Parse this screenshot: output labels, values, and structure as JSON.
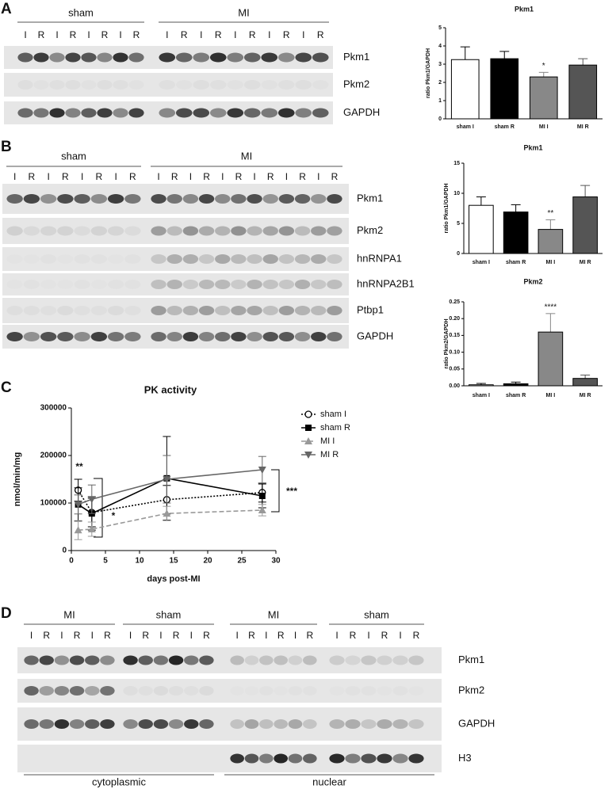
{
  "panel_labels": [
    "A",
    "B",
    "C",
    "D"
  ],
  "blots": [
    {
      "groups": [
        {
          "label": "sham",
          "lanes": [
            "I",
            "R",
            "I",
            "R",
            "I",
            "R",
            "I",
            "R"
          ]
        },
        {
          "label": "MI",
          "lanes": [
            "I",
            "R",
            "I",
            "R",
            "I",
            "R",
            "I",
            "R",
            "I",
            "R"
          ]
        }
      ],
      "rows": [
        "Pkm1",
        "Pkm2",
        "GAPDH"
      ]
    },
    {
      "groups": [
        {
          "label": "sham",
          "lanes": [
            "I",
            "R",
            "I",
            "R",
            "I",
            "R",
            "I",
            "R"
          ]
        },
        {
          "label": "MI",
          "lanes": [
            "I",
            "R",
            "I",
            "R",
            "I",
            "R",
            "I",
            "R",
            "I",
            "R",
            "I",
            "R"
          ]
        }
      ],
      "rows": [
        "Pkm1",
        "Pkm2",
        "hnRNPA1",
        "hnRNPA2B1",
        "Ptbp1",
        "GAPDH"
      ]
    },
    {
      "groups": [
        {
          "label": "MI",
          "lanes": [
            "I",
            "R",
            "I",
            "R",
            "I",
            "R"
          ]
        },
        {
          "label": "sham",
          "lanes": [
            "I",
            "R",
            "I",
            "R",
            "I",
            "R"
          ]
        },
        {
          "label": "MI",
          "lanes": [
            "I",
            "R",
            "I",
            "R",
            "I",
            "R"
          ]
        },
        {
          "label": "sham",
          "lanes": [
            "I",
            "R",
            "I",
            "R",
            "I",
            "R"
          ]
        }
      ],
      "rows": [
        "Pkm1",
        "Pkm2",
        "GAPDH",
        "H3"
      ],
      "fractions": [
        "cytoplasmic",
        "nuclear"
      ]
    }
  ],
  "chart_data": [
    {
      "type": "bar",
      "title": "Pkm1",
      "ylabel": "ratio Pkm1/GAPDH",
      "categories": [
        "sham I",
        "sham R",
        "MI I",
        "MI R"
      ],
      "values": [
        3.25,
        3.3,
        2.3,
        2.95
      ],
      "errors": [
        0.7,
        0.4,
        0.25,
        0.35
      ],
      "colors": [
        "#ffffff",
        "#000000",
        "#888888",
        "#555555"
      ],
      "significance": [
        null,
        null,
        "*",
        null
      ],
      "ylim": [
        0,
        5
      ],
      "yticks": [
        0,
        1,
        2,
        3,
        4,
        5
      ]
    },
    {
      "type": "bar",
      "title": "Pkm1",
      "ylabel": "ratio Pkm1/GAPDH",
      "categories": [
        "sham I",
        "sham R",
        "MI I",
        "MI R"
      ],
      "values": [
        8,
        6.9,
        4,
        9.4
      ],
      "errors": [
        1.4,
        1.2,
        1.6,
        1.9
      ],
      "colors": [
        "#ffffff",
        "#000000",
        "#888888",
        "#555555"
      ],
      "significance": [
        null,
        null,
        "**",
        null
      ],
      "ylim": [
        0,
        15
      ],
      "yticks": [
        0,
        5,
        10,
        15
      ]
    },
    {
      "type": "bar",
      "title": "Pkm2",
      "ylabel": "ratio Pkm2/GAPDH",
      "categories": [
        "sham I",
        "sham R",
        "MI I",
        "MI R"
      ],
      "values": [
        0.003,
        0.006,
        0.16,
        0.022
      ],
      "errors": [
        0.004,
        0.005,
        0.055,
        0.01
      ],
      "colors": [
        "#ffffff",
        "#000000",
        "#888888",
        "#555555"
      ],
      "significance": [
        null,
        null,
        "****",
        null
      ],
      "ylim": [
        0,
        0.25
      ],
      "yticks": [
        {
          "value": 0,
          "label": "0.00"
        },
        {
          "value": 0.05,
          "label": "0.05"
        },
        {
          "value": 0.1,
          "label": "0.10"
        },
        {
          "value": 0.15,
          "label": "0.15"
        },
        {
          "value": 0.2,
          "label": "0.20"
        },
        {
          "value": 0.25,
          "label": "0.25"
        }
      ]
    },
    {
      "type": "line",
      "title": "PK activity",
      "xlabel": "days post-MI",
      "ylabel": "nmol/min/mg",
      "x": [
        1,
        3,
        14,
        28
      ],
      "series": [
        {
          "name": "sham I",
          "color": "#000000",
          "dash": "dotted",
          "marker": "circle-open",
          "values": [
            127000,
            80000,
            107000,
            122000
          ],
          "errors": [
            23000,
            30000,
            30000,
            20000
          ]
        },
        {
          "name": "sham R",
          "color": "#000000",
          "dash": "solid",
          "marker": "square",
          "values": [
            97000,
            78000,
            152000,
            115000
          ],
          "errors": [
            35000,
            35000,
            88000,
            25000
          ]
        },
        {
          "name": "MI I",
          "color": "#999999",
          "dash": "dashed",
          "marker": "triangle-up",
          "values": [
            43000,
            45000,
            78000,
            85000
          ],
          "errors": [
            20000,
            15000,
            15000,
            12000
          ]
        },
        {
          "name": "MI R",
          "color": "#666666",
          "dash": "solid",
          "marker": "triangle-down",
          "values": [
            97000,
            108000,
            150000,
            170000
          ],
          "errors": [
            20000,
            30000,
            50000,
            28000
          ]
        }
      ],
      "annotations": [
        "**",
        "*",
        "***"
      ],
      "xlim": [
        0,
        30
      ],
      "xticks": [
        0,
        5,
        10,
        15,
        20,
        25,
        30
      ],
      "ylim": [
        0,
        300000
      ],
      "yticks": [
        0,
        100000,
        200000,
        300000
      ]
    }
  ]
}
